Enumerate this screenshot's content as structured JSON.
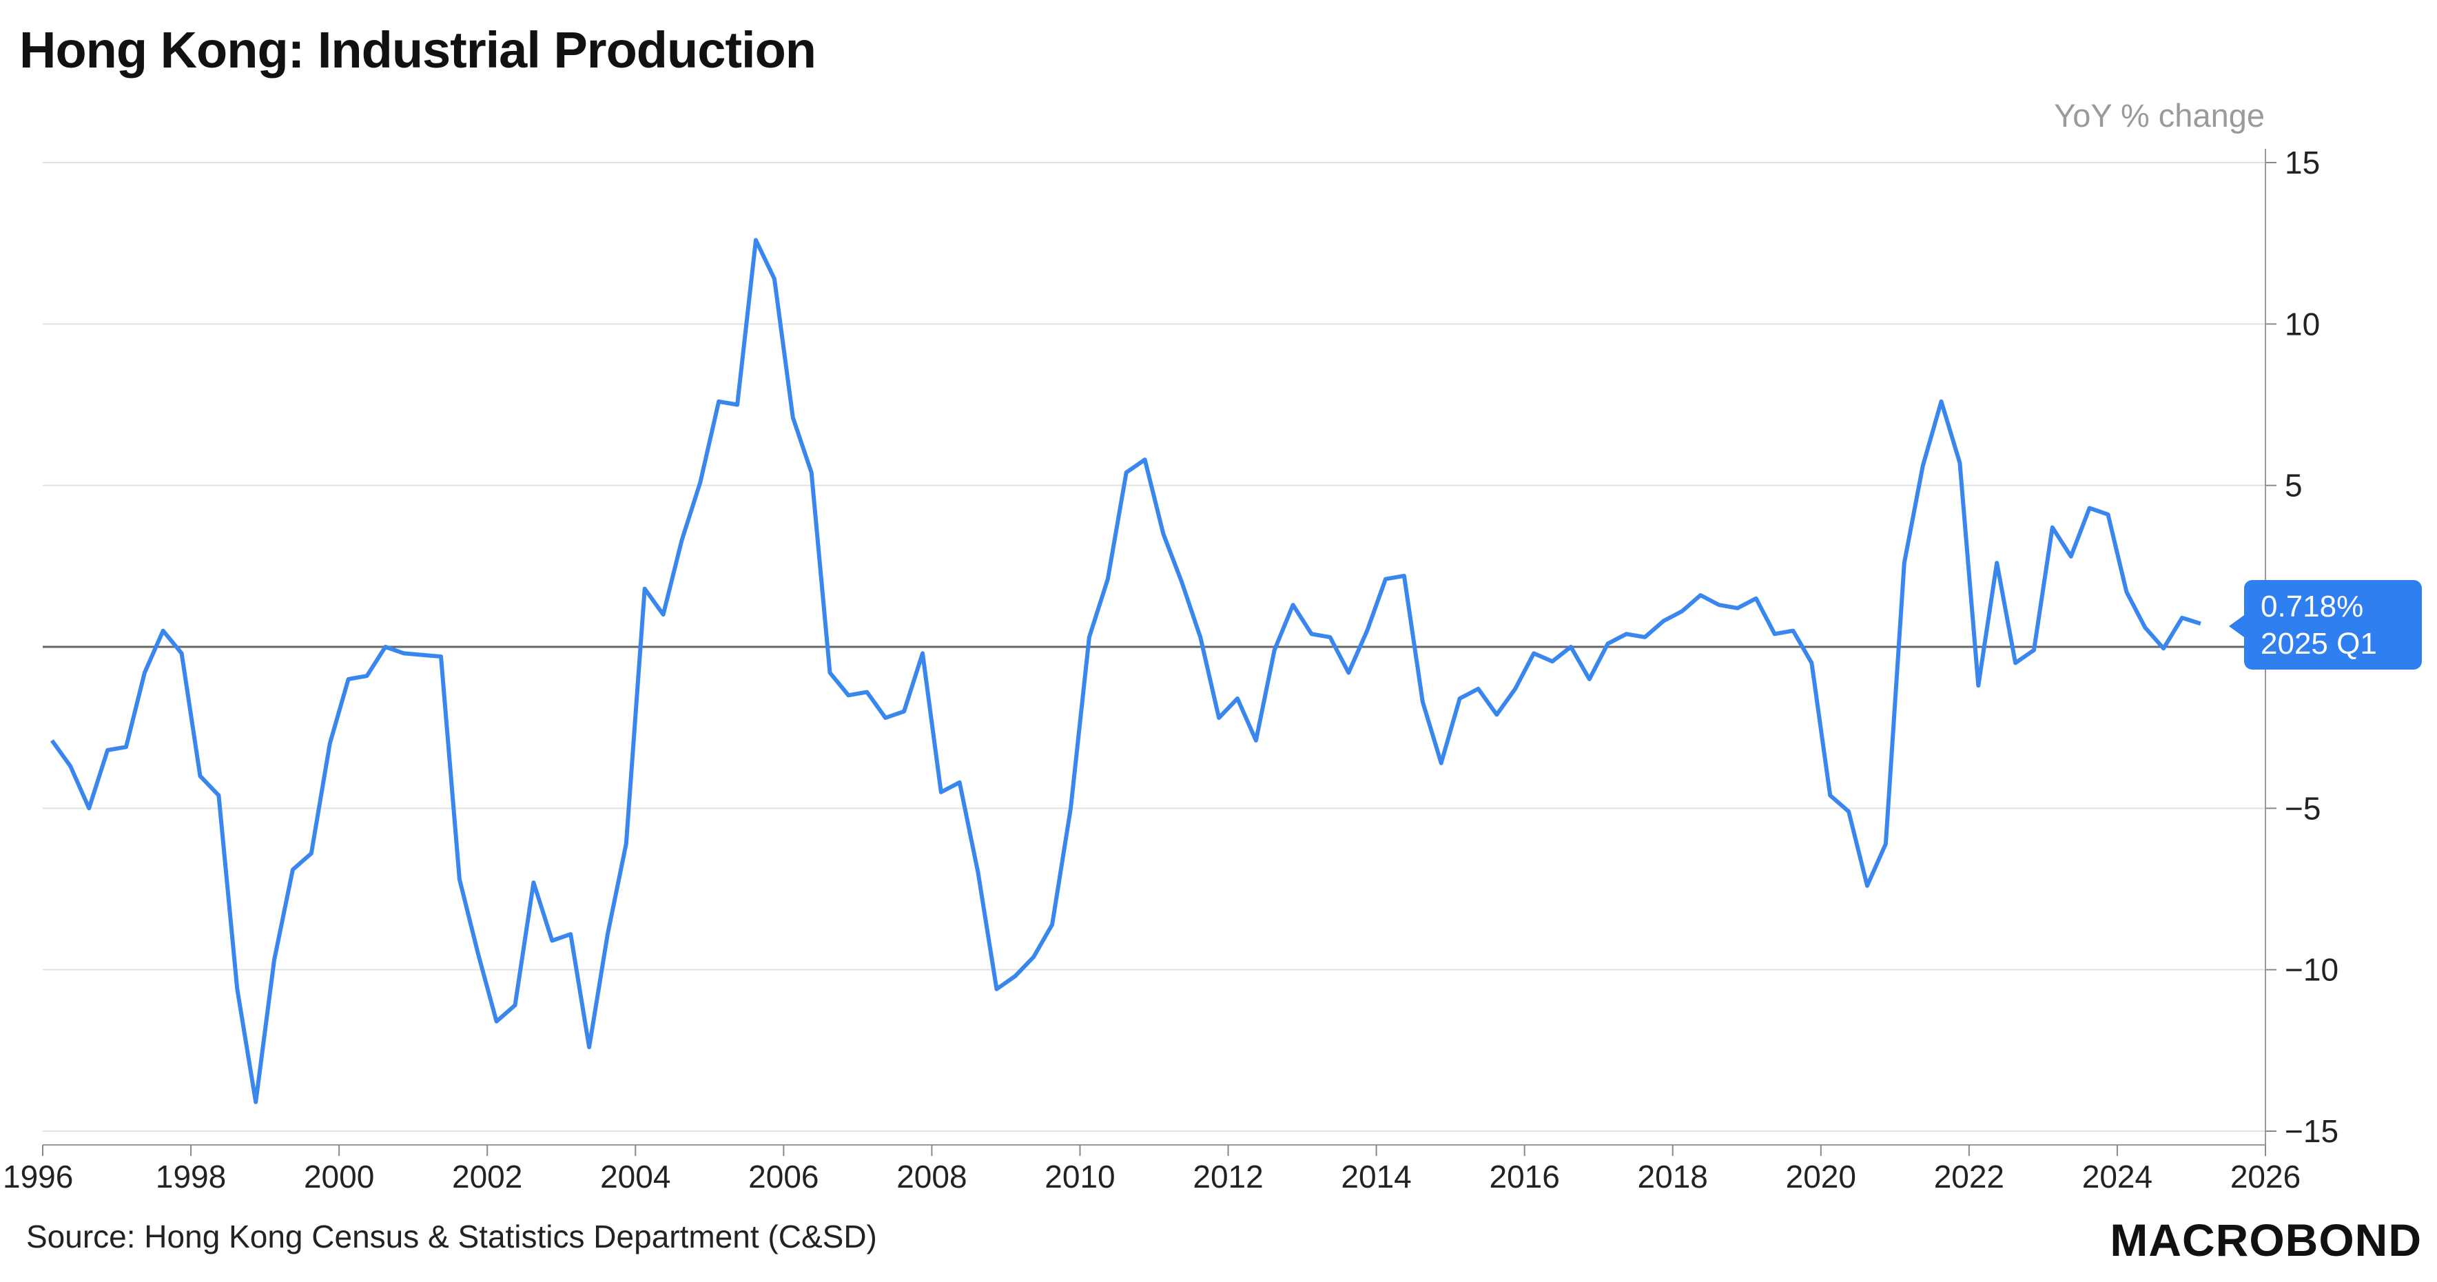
{
  "header": {
    "title": "Hong Kong: Industrial Production",
    "unit_label": "YoY % change"
  },
  "footer": {
    "source": "Source: Hong Kong Census & Statistics Department (C&SD)",
    "logo_text": "MACROBOND"
  },
  "callout": {
    "value_label": "0.718%",
    "period_label": "2025 Q1"
  },
  "colors": {
    "series": "#3a86ef",
    "zero_line": "#666666",
    "grid": "#e2e2e2"
  },
  "chart_data": {
    "type": "line",
    "title": "Hong Kong: Industrial Production",
    "ylabel": "YoY % change",
    "xlim": [
      1996,
      2026
    ],
    "ylim": [
      -15,
      15
    ],
    "x_ticks": [
      1996,
      1998,
      2000,
      2002,
      2004,
      2006,
      2008,
      2010,
      2012,
      2014,
      2016,
      2018,
      2020,
      2022,
      2024,
      2026
    ],
    "x_tick_labels": [
      "1996",
      "1998",
      "2000",
      "2002",
      "2004",
      "2006",
      "2008",
      "2010",
      "2012",
      "2014",
      "2016",
      "2018",
      "2020",
      "2022",
      "2024",
      "2026"
    ],
    "y_ticks": [
      15,
      10,
      5,
      0,
      -5,
      -10,
      -15
    ],
    "y_tick_labels": [
      "15",
      "10",
      "5",
      "",
      "−5",
      "−10",
      "−15"
    ],
    "y_axis_position": "right",
    "grid": true,
    "legend": "none",
    "series": [
      {
        "x": [
          "1996 Q1",
          "1996 Q2",
          "1996 Q3",
          "1996 Q4",
          "1997 Q1",
          "1997 Q2",
          "1997 Q3",
          "1997 Q4",
          "1998 Q1",
          "1998 Q2",
          "1998 Q3",
          "1998 Q4",
          "1999 Q1",
          "1999 Q2",
          "1999 Q3",
          "1999 Q4",
          "2000 Q1",
          "2000 Q2",
          "2000 Q3",
          "2000 Q4",
          "2001 Q1",
          "2001 Q2",
          "2001 Q3",
          "2001 Q4",
          "2002 Q1",
          "2002 Q2",
          "2002 Q3",
          "2002 Q4",
          "2003 Q1",
          "2003 Q2",
          "2003 Q3",
          "2003 Q4",
          "2004 Q1",
          "2004 Q2",
          "2004 Q3",
          "2004 Q4",
          "2005 Q1",
          "2005 Q2",
          "2005 Q3",
          "2005 Q4",
          "2006 Q1",
          "2006 Q2",
          "2006 Q3",
          "2006 Q4",
          "2007 Q1",
          "2007 Q2",
          "2007 Q3",
          "2007 Q4",
          "2008 Q1",
          "2008 Q2",
          "2008 Q3",
          "2008 Q4",
          "2009 Q1",
          "2009 Q2",
          "2009 Q3",
          "2009 Q4",
          "2010 Q1",
          "2010 Q2",
          "2010 Q3",
          "2010 Q4",
          "2011 Q1",
          "2011 Q2",
          "2011 Q3",
          "2011 Q4",
          "2012 Q1",
          "2012 Q2",
          "2012 Q3",
          "2012 Q4",
          "2013 Q1",
          "2013 Q2",
          "2013 Q3",
          "2013 Q4",
          "2014 Q1",
          "2014 Q2",
          "2014 Q3",
          "2014 Q4",
          "2015 Q1",
          "2015 Q2",
          "2015 Q3",
          "2015 Q4",
          "2016 Q1",
          "2016 Q2",
          "2016 Q3",
          "2016 Q4",
          "2017 Q1",
          "2017 Q2",
          "2017 Q3",
          "2017 Q4",
          "2018 Q1",
          "2018 Q2",
          "2018 Q3",
          "2018 Q4",
          "2019 Q1",
          "2019 Q2",
          "2019 Q3",
          "2019 Q4",
          "2020 Q1",
          "2020 Q2",
          "2020 Q3",
          "2020 Q4",
          "2021 Q1",
          "2021 Q2",
          "2021 Q3",
          "2021 Q4",
          "2022 Q1",
          "2022 Q2",
          "2022 Q3",
          "2022 Q4",
          "2023 Q1",
          "2023 Q2",
          "2023 Q3",
          "2023 Q4",
          "2024 Q1",
          "2024 Q2",
          "2024 Q3",
          "2024 Q4",
          "2025 Q1"
        ],
        "values": [
          -2.9,
          -3.7,
          -5.0,
          -3.2,
          -3.1,
          -0.8,
          0.5,
          -0.2,
          -4.0,
          -4.6,
          -10.6,
          -14.1,
          -9.7,
          -6.9,
          -6.4,
          -3.0,
          -1.0,
          -0.9,
          0.0,
          -0.2,
          -0.25,
          -0.3,
          -7.2,
          -9.5,
          -11.6,
          -11.1,
          -7.3,
          -9.1,
          -8.9,
          -12.4,
          -8.9,
          -6.1,
          1.8,
          1.0,
          3.3,
          5.1,
          7.6,
          7.5,
          12.6,
          11.4,
          7.1,
          5.4,
          -0.8,
          -1.5,
          -1.4,
          -2.2,
          -2.0,
          -0.2,
          -4.5,
          -4.2,
          -7.0,
          -10.6,
          -10.2,
          -9.6,
          -8.6,
          -5.0,
          0.3,
          2.1,
          5.4,
          5.8,
          3.5,
          2.0,
          0.3,
          -2.2,
          -1.6,
          -2.9,
          -0.1,
          1.3,
          0.4,
          0.3,
          -0.8,
          0.5,
          2.1,
          2.2,
          -1.7,
          -3.6,
          -1.6,
          -1.3,
          -2.1,
          -1.3,
          -0.2,
          -0.45,
          0.0,
          -1.0,
          0.1,
          0.4,
          0.3,
          0.8,
          1.1,
          1.6,
          1.3,
          1.2,
          1.5,
          0.4,
          0.5,
          -0.5,
          -4.6,
          -5.1,
          -7.4,
          -6.1,
          2.6,
          5.6,
          7.6,
          5.7,
          -1.2,
          2.6,
          -0.5,
          -0.1,
          3.7,
          2.8,
          4.3,
          4.1,
          1.7,
          0.6,
          -0.05,
          0.9,
          0.718
        ]
      }
    ]
  }
}
